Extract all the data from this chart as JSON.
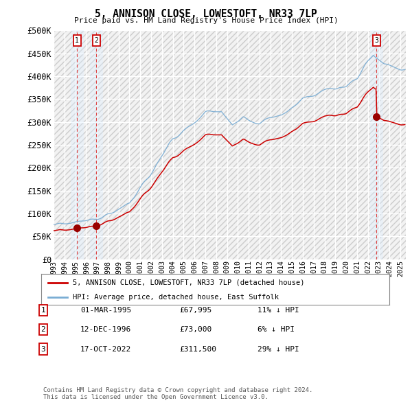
{
  "title": "5, ANNISON CLOSE, LOWESTOFT, NR33 7LP",
  "subtitle": "Price paid vs. HM Land Registry's House Price Index (HPI)",
  "ylabel_ticks": [
    "£0",
    "£50K",
    "£100K",
    "£150K",
    "£200K",
    "£250K",
    "£300K",
    "£350K",
    "£400K",
    "£450K",
    "£500K"
  ],
  "ytick_values": [
    0,
    50000,
    100000,
    150000,
    200000,
    250000,
    300000,
    350000,
    400000,
    450000,
    500000
  ],
  "ylim": [
    0,
    500000
  ],
  "xlim_start": 1993.0,
  "xlim_end": 2025.5,
  "xtick_years": [
    1993,
    1994,
    1995,
    1996,
    1997,
    1998,
    1999,
    2000,
    2001,
    2002,
    2003,
    2004,
    2005,
    2006,
    2007,
    2008,
    2009,
    2010,
    2011,
    2012,
    2013,
    2014,
    2015,
    2016,
    2017,
    2018,
    2019,
    2020,
    2021,
    2022,
    2023,
    2024,
    2025
  ],
  "sale_dates": [
    1995.17,
    1996.95,
    2022.79
  ],
  "sale_prices": [
    67995,
    73000,
    311500
  ],
  "sale_labels": [
    "1",
    "2",
    "3"
  ],
  "hpi_line_color": "#7aadd4",
  "sale_line_color": "#cc0000",
  "sale_marker_color": "#990000",
  "dashed_line_color": "#dd4444",
  "shade_color": "#ddeeff",
  "legend_entry1": "5, ANNISON CLOSE, LOWESTOFT, NR33 7LP (detached house)",
  "legend_entry2": "HPI: Average price, detached house, East Suffolk",
  "table_rows": [
    [
      "1",
      "01-MAR-1995",
      "£67,995",
      "11% ↓ HPI"
    ],
    [
      "2",
      "12-DEC-1996",
      "£73,000",
      "6% ↓ HPI"
    ],
    [
      "3",
      "17-OCT-2022",
      "£311,500",
      "29% ↓ HPI"
    ]
  ],
  "footer_text": "Contains HM Land Registry data © Crown copyright and database right 2024.\nThis data is licensed under the Open Government Licence v3.0."
}
